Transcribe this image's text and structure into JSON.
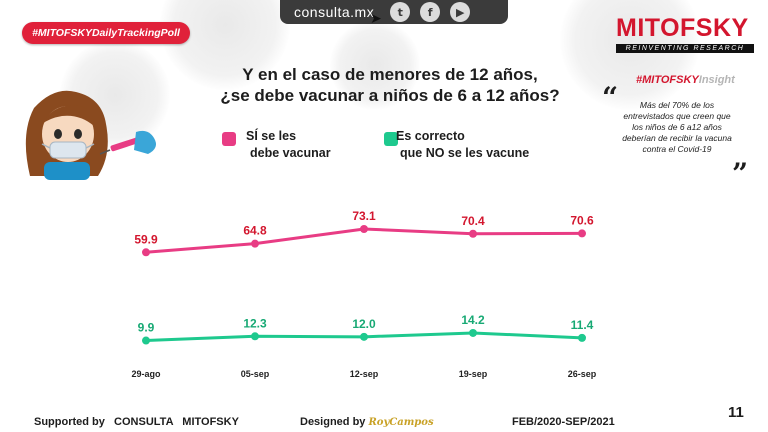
{
  "topbar": {
    "site": "consulta.mx"
  },
  "badge": {
    "label": "#MITOFSKYDailyTrackingPoll"
  },
  "brand": {
    "name": "MITOFSKY",
    "tagline": "REINVENTING RESEARCH"
  },
  "question": {
    "line1": "Y en el caso de menores de 12 años,",
    "line2": "¿se debe vacunar a niños de 6 a 12 años?"
  },
  "legend": {
    "yes_line1": "SÍ se les",
    "yes_line2": "debe vacunar",
    "no_line1": "Es correcto",
    "no_line2": "que NO se les vacune"
  },
  "insight": {
    "title_hash": "#MITOFSKY",
    "title_rest": "Insight",
    "text": "Más del 70% de los entrevistados que creen que los niños de 6 a12 años deberían de recibir la vacuna contra el Covid-19"
  },
  "footer": {
    "supported": "Supported by   CONSULTA   MITOFSKY",
    "designed": "Designed by",
    "designer": "RoyCampos",
    "period": "FEB/2020-SEP/2021",
    "page": "11"
  },
  "colors": {
    "yes": "#e83c84",
    "no": "#1ec98e",
    "brand_red": "#d3162e"
  },
  "chart_data": {
    "type": "line",
    "categories": [
      "29-ago",
      "05-sep",
      "12-sep",
      "19-sep",
      "26-sep"
    ],
    "series": [
      {
        "name": "SÍ se les debe vacunar",
        "values": [
          59.9,
          64.8,
          73.1,
          70.4,
          70.6
        ]
      },
      {
        "name": "Es correcto que NO se les vacune",
        "values": [
          9.9,
          12.3,
          12.0,
          14.2,
          11.4
        ]
      }
    ],
    "ylim": [
      0,
      85
    ],
    "grid": false,
    "legend": "top"
  }
}
